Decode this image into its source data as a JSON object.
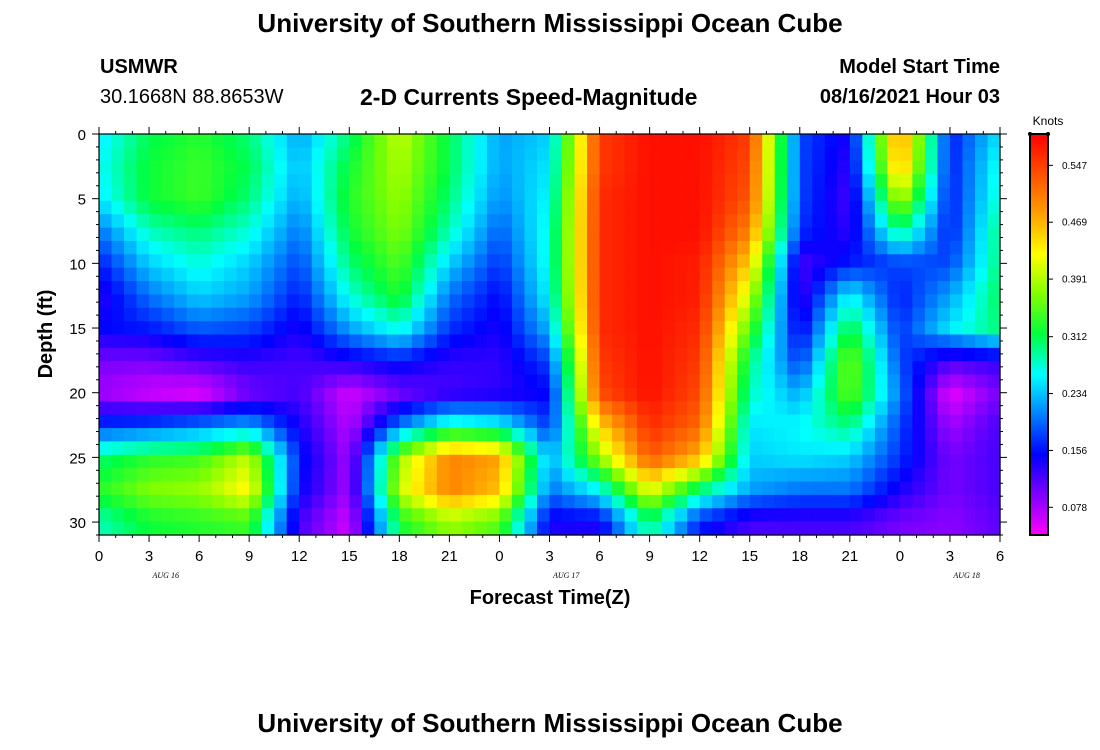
{
  "header": {
    "title": "University of Southern Mississippi Ocean Cube",
    "station_code": "USMWR",
    "station_coords": "30.1668N  88.8653W",
    "subtitle": "2-D Currents Speed-Magnitude",
    "model_start_label": "Model Start Time",
    "model_start_value": "08/16/2021 Hour 03"
  },
  "footer": {
    "title": "University of Southern Mississippi Ocean Cube"
  },
  "chart_data": {
    "type": "heatmap",
    "xlabel": "Forecast Time(Z)",
    "ylabel": "Depth (ft)",
    "x_tick_labels": [
      "0",
      "3",
      "6",
      "9",
      "12",
      "15",
      "18",
      "21",
      "0",
      "3",
      "6",
      "9",
      "12",
      "15",
      "18",
      "21",
      "0",
      "3",
      "6"
    ],
    "date_labels": [
      "AUG 16",
      "AUG 17",
      "AUG 18"
    ],
    "y_tick_labels": [
      "0",
      "5",
      "10",
      "15",
      "20",
      "25",
      "30"
    ],
    "ylim": [
      0,
      31
    ],
    "y_inverted": true,
    "x_hours": [
      0,
      3,
      6,
      9,
      12,
      15,
      18,
      21,
      24,
      27,
      30,
      33,
      36,
      39,
      42,
      45,
      48,
      51,
      54
    ],
    "depths": [
      0,
      2.5,
      5,
      7.5,
      10,
      12.5,
      15,
      17.5,
      20,
      22.5,
      25,
      27.5,
      30
    ],
    "values": [
      [
        0.25,
        0.31,
        0.33,
        0.3,
        0.22,
        0.3,
        0.4,
        0.31,
        0.22,
        0.24,
        0.55,
        0.58,
        0.58,
        0.55,
        0.18,
        0.14,
        0.5,
        0.16,
        0.25
      ],
      [
        0.26,
        0.32,
        0.34,
        0.31,
        0.23,
        0.32,
        0.39,
        0.31,
        0.22,
        0.25,
        0.55,
        0.58,
        0.58,
        0.54,
        0.18,
        0.13,
        0.48,
        0.16,
        0.27
      ],
      [
        0.25,
        0.32,
        0.34,
        0.3,
        0.22,
        0.33,
        0.38,
        0.3,
        0.21,
        0.26,
        0.56,
        0.58,
        0.58,
        0.53,
        0.18,
        0.12,
        0.4,
        0.16,
        0.28
      ],
      [
        0.2,
        0.28,
        0.3,
        0.27,
        0.2,
        0.32,
        0.37,
        0.28,
        0.19,
        0.27,
        0.56,
        0.58,
        0.58,
        0.5,
        0.17,
        0.13,
        0.3,
        0.16,
        0.3
      ],
      [
        0.16,
        0.24,
        0.27,
        0.24,
        0.18,
        0.3,
        0.35,
        0.24,
        0.17,
        0.27,
        0.56,
        0.58,
        0.57,
        0.45,
        0.12,
        0.16,
        0.18,
        0.18,
        0.3
      ],
      [
        0.13,
        0.2,
        0.24,
        0.22,
        0.16,
        0.27,
        0.33,
        0.2,
        0.15,
        0.26,
        0.56,
        0.58,
        0.57,
        0.4,
        0.12,
        0.26,
        0.16,
        0.22,
        0.31
      ],
      [
        0.15,
        0.16,
        0.19,
        0.18,
        0.14,
        0.22,
        0.27,
        0.17,
        0.14,
        0.23,
        0.56,
        0.58,
        0.56,
        0.35,
        0.14,
        0.32,
        0.17,
        0.25,
        0.3
      ],
      [
        0.1,
        0.1,
        0.12,
        0.13,
        0.12,
        0.14,
        0.16,
        0.13,
        0.13,
        0.18,
        0.55,
        0.58,
        0.55,
        0.3,
        0.17,
        0.37,
        0.18,
        0.12,
        0.13
      ],
      [
        0.08,
        0.06,
        0.05,
        0.1,
        0.12,
        0.06,
        0.1,
        0.12,
        0.13,
        0.15,
        0.54,
        0.58,
        0.54,
        0.28,
        0.22,
        0.36,
        0.2,
        0.05,
        0.1
      ],
      [
        0.17,
        0.18,
        0.2,
        0.22,
        0.14,
        0.07,
        0.2,
        0.28,
        0.26,
        0.17,
        0.45,
        0.56,
        0.52,
        0.25,
        0.26,
        0.3,
        0.18,
        0.08,
        0.12
      ],
      [
        0.3,
        0.33,
        0.34,
        0.4,
        0.16,
        0.08,
        0.38,
        0.5,
        0.48,
        0.22,
        0.38,
        0.53,
        0.47,
        0.24,
        0.25,
        0.24,
        0.17,
        0.1,
        0.12
      ],
      [
        0.33,
        0.37,
        0.38,
        0.43,
        0.15,
        0.08,
        0.4,
        0.5,
        0.46,
        0.2,
        0.26,
        0.42,
        0.3,
        0.22,
        0.2,
        0.2,
        0.14,
        0.1,
        0.12
      ],
      [
        0.28,
        0.32,
        0.33,
        0.34,
        0.12,
        0.06,
        0.32,
        0.38,
        0.35,
        0.14,
        0.14,
        0.3,
        0.16,
        0.12,
        0.12,
        0.12,
        0.1,
        0.09,
        0.11
      ]
    ],
    "colorbar": {
      "title": "Knots",
      "min": 0.04,
      "max": 0.59,
      "ticks": [
        "0.547",
        "0.469",
        "0.391",
        "0.312",
        "0.234",
        "0.156",
        "0.078"
      ],
      "tick_values": [
        0.547,
        0.469,
        0.391,
        0.312,
        0.234,
        0.156,
        0.078
      ],
      "colors": [
        "#ff00ff",
        "#8000ff",
        "#0000ff",
        "#0080ff",
        "#00ffff",
        "#00ff40",
        "#80ff00",
        "#ffff00",
        "#ffa000",
        "#ff5000",
        "#ff0000"
      ]
    }
  }
}
